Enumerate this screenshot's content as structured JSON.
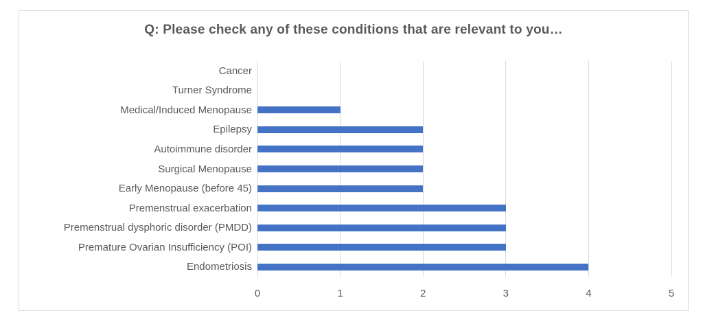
{
  "chart_data": {
    "type": "bar",
    "orientation": "horizontal",
    "title": "Q: Please check any of these conditions that are relevant to you…",
    "categories": [
      "Cancer",
      "Turner Syndrome",
      "Medical/Induced Menopause",
      "Epilepsy",
      "Autoimmune disorder",
      "Surgical Menopause",
      "Early Menopause (before 45)",
      "Premenstrual exacerbation",
      "Premenstrual dysphoric disorder (PMDD)",
      "Premature Ovarian Insufficiency (POI)",
      "Endometriosis"
    ],
    "values": [
      0,
      0,
      1,
      2,
      2,
      2,
      2,
      3,
      3,
      3,
      4
    ],
    "xlabel": "",
    "ylabel": "",
    "xlim": [
      0,
      5
    ],
    "x_ticks": [
      "0",
      "1",
      "2",
      "3",
      "4",
      "5"
    ],
    "grid": "vertical-major",
    "legend": "none",
    "colors": {
      "bar": "#4472c4",
      "gridline": "#d9d9d9",
      "chart_border": "#d9d9d9",
      "title_text": "#595959",
      "axis_text": "#595959",
      "background": "#ffffff"
    }
  }
}
